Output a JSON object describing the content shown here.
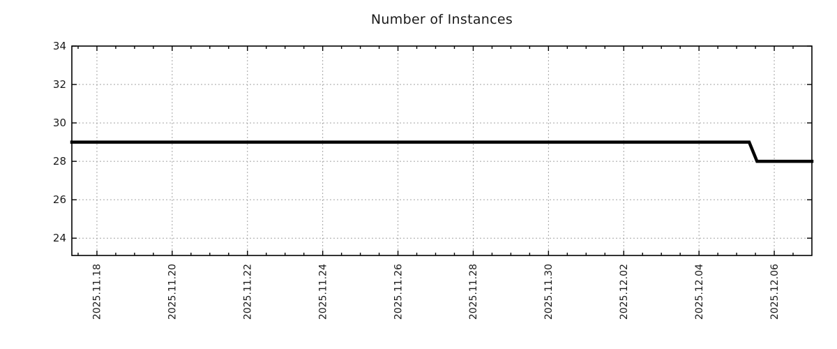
{
  "page": {
    "background": "#ffffff"
  },
  "chart_data": {
    "type": "line",
    "title": "Number of Instances",
    "xlabel": "",
    "ylabel": "",
    "x_range": [
      "2025-11-17 08:00",
      "2025-12-07 00:00"
    ],
    "y_range": [
      23.1,
      34
    ],
    "y_major_ticks": [
      24,
      26,
      28,
      30,
      32,
      34
    ],
    "x_major_ticks": [
      {
        "date": "2025-11-18 00:00",
        "label": "2025.11.18"
      },
      {
        "date": "2025-11-20 00:00",
        "label": "2025.11.20"
      },
      {
        "date": "2025-11-22 00:00",
        "label": "2025.11.22"
      },
      {
        "date": "2025-11-24 00:00",
        "label": "2025.11.24"
      },
      {
        "date": "2025-11-26 00:00",
        "label": "2025.11.26"
      },
      {
        "date": "2025-11-28 00:00",
        "label": "2025.11.28"
      },
      {
        "date": "2025-11-30 00:00",
        "label": "2025.11.30"
      },
      {
        "date": "2025-12-02 00:00",
        "label": "2025.12.02"
      },
      {
        "date": "2025-12-04 00:00",
        "label": "2025.12.04"
      },
      {
        "date": "2025-12-06 00:00",
        "label": "2025.12.06"
      }
    ],
    "x_minor_tick_hours": 12,
    "grid": true,
    "legend": null,
    "series": [
      {
        "name": "instances",
        "color": "#000000",
        "line_width": 4.5,
        "points": [
          {
            "x": "2025-11-17 08:00",
            "y": 29
          },
          {
            "x": "2025-12-05 08:00",
            "y": 29
          },
          {
            "x": "2025-12-05 13:00",
            "y": 28
          },
          {
            "x": "2025-12-07 00:00",
            "y": 28
          }
        ]
      }
    ],
    "colors": {
      "grid": "#a2a2a2",
      "axis": "#000000",
      "text": "#1a1a1a",
      "background": "#ffffff"
    }
  }
}
